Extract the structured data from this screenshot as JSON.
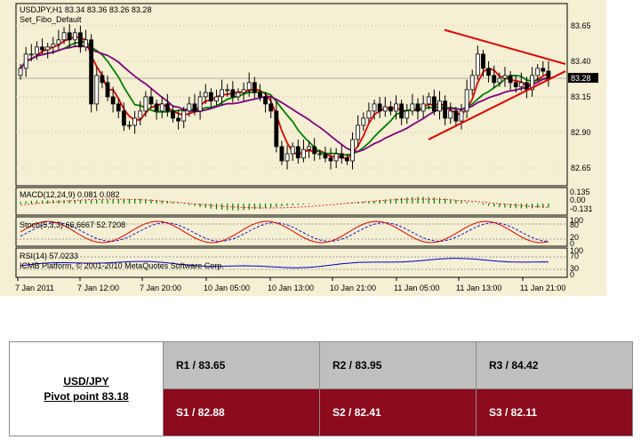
{
  "chart_data": [
    {
      "type": "candlestick",
      "title": "USDJPY,H1  83.34 83.36 83.26 83.28",
      "subtitle": "Set_Fibo_Default",
      "ylim": [
        82.55,
        83.78
      ],
      "y_ticks": [
        "83.65",
        "83.40",
        "83.15",
        "82.90",
        "82.65"
      ],
      "y_tick_values": [
        83.65,
        83.4,
        83.15,
        82.9,
        82.65
      ],
      "current_price_label": "83.28",
      "current_price": 83.28,
      "x_ticks": [
        "7 Jan 2011",
        "7 Jan 12:00",
        "7 Jan 20:00",
        "10 Jan 05:00",
        "10 Jan 13:00",
        "10 Jan 21:00",
        "11 Jan 05:00",
        "11 Jan 13:00",
        "11 Jan 21:00"
      ],
      "series": [
        {
          "values": [
            83.35,
            83.45,
            83.45,
            83.5,
            83.48,
            83.5,
            83.52,
            83.55,
            83.6,
            83.55,
            83.6,
            83.5,
            83.55,
            83.1,
            83.3,
            83.25,
            83.15,
            83.1,
            83.05,
            82.95,
            82.95,
            83.0,
            83.05,
            83.15,
            83.1,
            83.05,
            83.1,
            83.05,
            83.0,
            82.98,
            83.05,
            83.1,
            83.05,
            83.15,
            83.18,
            83.12,
            83.15,
            83.2,
            83.2,
            83.15,
            83.18,
            83.2,
            83.25,
            83.18,
            83.15,
            83.1,
            83.05,
            82.8,
            82.7,
            82.75,
            82.8,
            82.72,
            82.78,
            82.8,
            82.75,
            82.75,
            82.72,
            82.7,
            82.75,
            82.72,
            82.7,
            82.85,
            82.95,
            83.0,
            83.05,
            83.1,
            83.05,
            83.08,
            83.05,
            83.1,
            83.0,
            83.05,
            83.1,
            83.05,
            83.1,
            83.15,
            83.05,
            83.12,
            83.0,
            83.05,
            82.98,
            83.05,
            83.2,
            83.3,
            83.45,
            83.35,
            83.3,
            83.25,
            83.28,
            83.3,
            83.25,
            83.22,
            83.25,
            83.2,
            83.3,
            83.35,
            83.33,
            83.28
          ]
        }
      ]
    },
    {
      "type": "histogram",
      "title": "MACD(12,24,9) 0.081 0.082",
      "y_ticks": [
        "0.135",
        "0.00",
        "-0.131"
      ]
    },
    {
      "type": "line",
      "title": "Stoch(5,3,3) 66.6667 52.7208",
      "y_ticks": [
        "100",
        "80",
        "20",
        "0"
      ]
    },
    {
      "type": "line",
      "title": "RSI(14) 57.0233",
      "y_ticks": [
        "100",
        "70",
        "30",
        "0"
      ],
      "watermark": "ICMB Platform, © 2001-2010 MetaQuotes Software Corp."
    }
  ],
  "colors": {
    "background": "#f5efd3",
    "up_candle": "#ffffff",
    "down_candle": "#000000",
    "ma_fast": "#e00000",
    "ma_mid": "#008000",
    "ma_slow": "#800080",
    "trendline": "#e00000",
    "macd": "#008000",
    "stoch_main": "#e00000",
    "stoch_signal": "#0000cc",
    "rsi": "#0000cc",
    "resistance_bg": "#bfbfbf",
    "support_bg": "#8b0a1c"
  },
  "pivot_table": {
    "pair": "USD/JPY",
    "pivot": "Pivot point 83.18",
    "r1": "R1 / 83.65",
    "r2": "R2 / 83.95",
    "r3": "R3 / 84.42",
    "s1": "S1 / 82.88",
    "s2": "S2 / 82.41",
    "s3": "S3 / 82.11"
  }
}
